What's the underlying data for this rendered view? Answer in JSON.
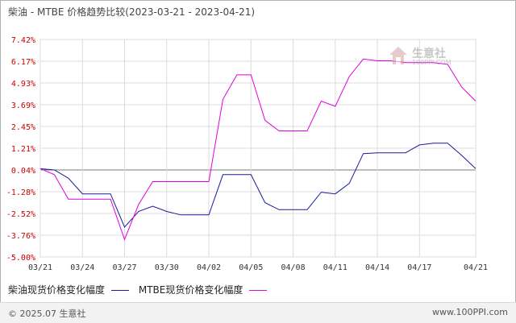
{
  "chart_data": {
    "type": "line",
    "title": "柴油 - MTBE 价格趋势比较(2023-03-21 - 2023-04-21)",
    "x": [
      "03/21",
      "03/22",
      "03/23",
      "03/24",
      "03/25",
      "03/26",
      "03/27",
      "03/28",
      "03/29",
      "03/30",
      "03/31",
      "04/01",
      "04/02",
      "04/03",
      "04/04",
      "04/05",
      "04/06",
      "04/07",
      "04/08",
      "04/09",
      "04/10",
      "04/11",
      "04/12",
      "04/13",
      "04/14",
      "04/15",
      "04/16",
      "04/17",
      "04/18",
      "04/19",
      "04/20",
      "04/21"
    ],
    "x_tick_labels": [
      "03/21",
      "03/24",
      "03/27",
      "03/30",
      "04/02",
      "04/05",
      "04/08",
      "04/11",
      "04/14",
      "04/17",
      "04/21"
    ],
    "y_tick_labels": [
      "7.42%",
      "6.17%",
      "4.93%",
      "3.69%",
      "2.45%",
      "1.21%",
      "0.04%",
      "-1.28%",
      "-2.52%",
      "-3.76%",
      "-5.00%"
    ],
    "ylim": [
      -5.0,
      7.42
    ],
    "grid": true,
    "legend_position": "bottom-left",
    "series": [
      {
        "name": "柴油现货价格变化幅度",
        "color": "#1a1a9c",
        "values": [
          0.04,
          -0.03,
          -0.5,
          -1.4,
          -1.4,
          -1.4,
          -3.3,
          -2.4,
          -2.1,
          -2.4,
          -2.6,
          -2.6,
          -2.6,
          -0.3,
          -0.3,
          -0.3,
          -1.9,
          -2.3,
          -2.3,
          -2.3,
          -1.3,
          -1.4,
          -0.8,
          0.9,
          0.95,
          0.95,
          0.95,
          1.4,
          1.5,
          1.5,
          0.8,
          0.04
        ]
      },
      {
        "name": "MTBE现货价格变化幅度",
        "color": "#e000e0",
        "values": [
          0.04,
          -0.3,
          -1.7,
          -1.7,
          -1.7,
          -1.7,
          -4.0,
          -2.0,
          -0.7,
          -0.7,
          -0.7,
          -0.7,
          -0.7,
          4.0,
          5.4,
          5.4,
          2.8,
          2.2,
          2.2,
          2.2,
          3.9,
          3.6,
          5.3,
          6.3,
          6.2,
          6.2,
          6.1,
          6.1,
          6.1,
          6.0,
          4.7,
          3.9
        ]
      }
    ]
  },
  "legend": {
    "items": [
      {
        "label": "柴油现货价格变化幅度",
        "color": "#1a1a9c"
      },
      {
        "label": "MTBE现货价格变化幅度",
        "color": "#e000e0"
      }
    ]
  },
  "footer": {
    "copyright": "© 2025.07 生意社",
    "site": "www.100PPI.com"
  },
  "watermark": {
    "name": "生意社",
    "url": "100PPI.COM",
    "icon": "house-logo-icon"
  }
}
